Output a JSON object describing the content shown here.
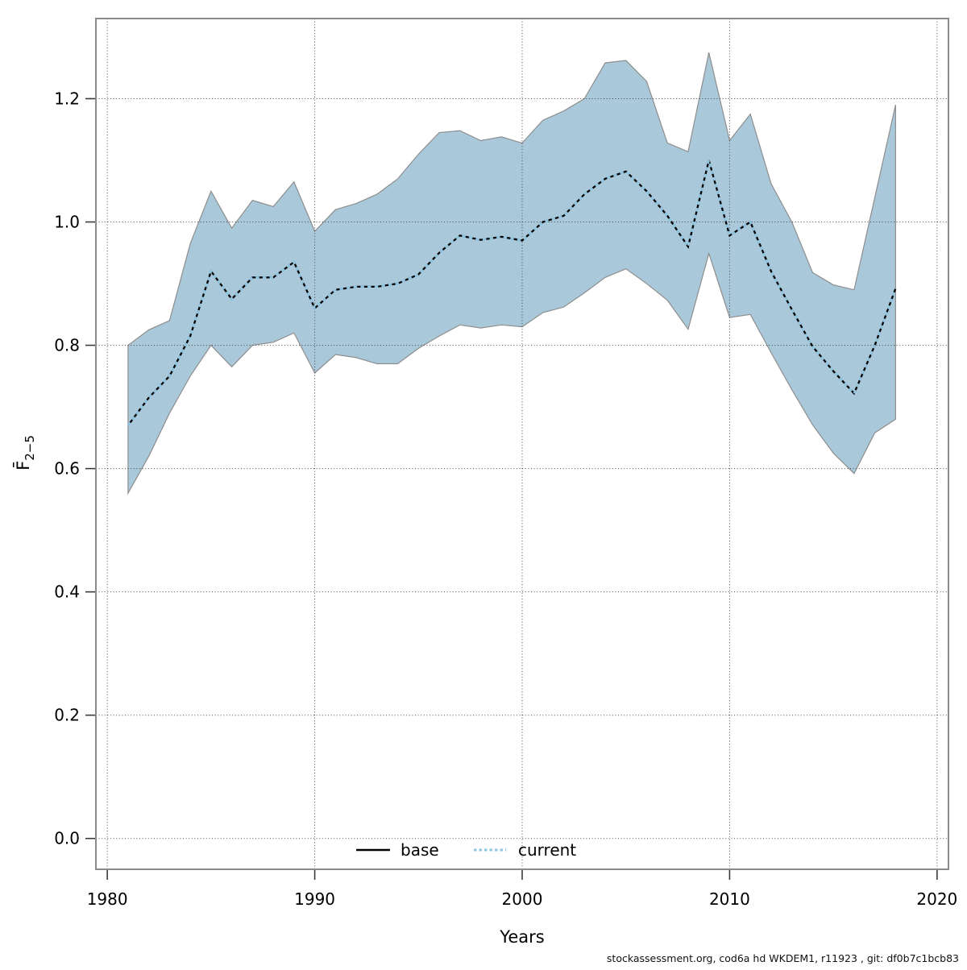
{
  "figure": {
    "footer": "stockassessment.org, cod6a hd WKDEM1, r11923 , git: df0b7c1bcb83"
  },
  "chart_data": {
    "type": "line",
    "title": "",
    "xlabel": "Years",
    "ylabel": {
      "text": "F̄",
      "subscript": "2−5"
    },
    "x": [
      1981,
      1982,
      1983,
      1984,
      1985,
      1986,
      1987,
      1988,
      1989,
      1990,
      1991,
      1992,
      1993,
      1994,
      1995,
      1996,
      1997,
      1998,
      1999,
      2000,
      2001,
      2002,
      2003,
      2004,
      2005,
      2006,
      2007,
      2008,
      2009,
      2010,
      2011,
      2012,
      2013,
      2014,
      2015,
      2016,
      2017,
      2018
    ],
    "series": [
      {
        "name": "base",
        "line_style": "solid",
        "color": "#000000",
        "values": [
          0.67,
          0.715,
          0.75,
          0.815,
          0.92,
          0.875,
          0.91,
          0.91,
          0.935,
          0.86,
          0.89,
          0.895,
          0.895,
          0.9,
          0.915,
          0.95,
          0.978,
          0.971,
          0.976,
          0.97,
          1.0,
          1.01,
          1.045,
          1.07,
          1.082,
          1.05,
          1.01,
          0.96,
          1.1,
          0.978,
          1.0,
          0.92,
          0.858,
          0.798,
          0.758,
          0.722,
          0.8,
          0.892
        ]
      },
      {
        "name": "current",
        "line_style": "dotted",
        "color": "#8FC5E0",
        "values": [
          0.67,
          0.715,
          0.75,
          0.815,
          0.92,
          0.875,
          0.91,
          0.91,
          0.935,
          0.86,
          0.89,
          0.895,
          0.895,
          0.9,
          0.915,
          0.95,
          0.978,
          0.971,
          0.976,
          0.97,
          1.0,
          1.01,
          1.045,
          1.07,
          1.082,
          1.05,
          1.01,
          0.96,
          1.1,
          0.978,
          1.0,
          0.92,
          0.858,
          0.798,
          0.758,
          0.722,
          0.8,
          0.892
        ]
      }
    ],
    "confidence_band": {
      "color": "#A9C8D9",
      "edge_color": "#8E8E8E",
      "lo": [
        0.56,
        0.62,
        0.69,
        0.75,
        0.8,
        0.765,
        0.8,
        0.805,
        0.82,
        0.755,
        0.785,
        0.78,
        0.77,
        0.77,
        0.795,
        0.815,
        0.833,
        0.828,
        0.833,
        0.83,
        0.853,
        0.862,
        0.885,
        0.91,
        0.924,
        0.9,
        0.873,
        0.826,
        0.949,
        0.845,
        0.85,
        0.788,
        0.728,
        0.671,
        0.625,
        0.592,
        0.658,
        0.68
      ],
      "hi": [
        0.8,
        0.825,
        0.84,
        0.965,
        1.05,
        0.99,
        1.035,
        1.025,
        1.065,
        0.985,
        1.02,
        1.03,
        1.045,
        1.07,
        1.11,
        1.145,
        1.148,
        1.132,
        1.138,
        1.128,
        1.165,
        1.18,
        1.2,
        1.258,
        1.262,
        1.228,
        1.128,
        1.114,
        1.275,
        1.132,
        1.175,
        1.062,
        1.0,
        0.918,
        0.898,
        0.89,
        1.04,
        1.19
      ]
    },
    "axes": {
      "xlim": [
        1979.45,
        2020.55
      ],
      "ylim": [
        -0.05,
        1.33
      ],
      "x_ticks": [
        "1980",
        "1990",
        "2000",
        "2010",
        "2020"
      ],
      "y_ticks": [
        "0.0",
        "0.2",
        "0.4",
        "0.6",
        "0.8",
        "1.0",
        "1.2"
      ],
      "grid": "dotted",
      "border_color": "#8A8A8A",
      "grid_color": "#2b2b2b"
    },
    "legend": {
      "position": "bottom-center"
    }
  }
}
